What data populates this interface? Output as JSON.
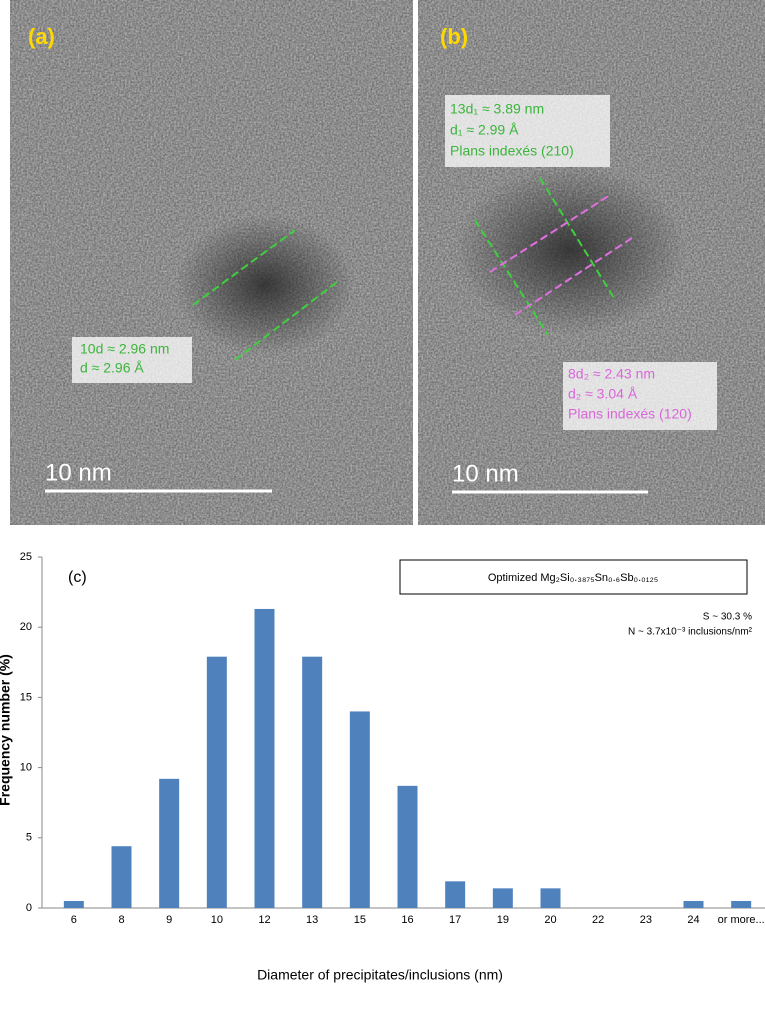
{
  "panels": [
    {
      "label": "(a)",
      "annotations": [
        "10d ≈ 2.96 nm",
        "d ≈ 2.96 Å"
      ],
      "scale_bar": "10 nm"
    },
    {
      "label": "(b)",
      "annotations": [
        "13d₁ ≈ 3.89 nm",
        "d₁ ≈ 2.99 Å",
        "Plans indexés (210)"
      ],
      "annotations_2": [
        "8d₂ ≈ 2.43 nm",
        "d₂ ≈ 3.04 Å",
        "Plans indexés (120)"
      ],
      "scale_bar": "10 nm"
    }
  ],
  "chart_data": {
    "type": "bar",
    "panel_label": "(c)",
    "legend": "Optimized Mg₂Si₀.₃₈₇₅Sn₀.₆Sb₀.₀₁₂₅",
    "annotations": [
      "S ~ 30.3 %",
      "N ~ 3.7x10⁻³ inclusions/nm²"
    ],
    "xlabel": "Diameter of precipitates/inclusions (nm)",
    "ylabel": "Frequency number (%)",
    "categories": [
      "6",
      "8",
      "9",
      "10",
      "12",
      "13",
      "15",
      "16",
      "17",
      "19",
      "20",
      "22",
      "23",
      "24",
      "or more..."
    ],
    "values": [
      0.5,
      4.4,
      9.2,
      17.9,
      21.3,
      17.9,
      14.0,
      8.7,
      1.9,
      1.4,
      1.4,
      0,
      0,
      0.5,
      0.5
    ],
    "color": "#4f81bd",
    "ylim": [
      0,
      25
    ],
    "yticks": [
      0,
      5,
      10,
      15,
      20,
      25
    ]
  }
}
